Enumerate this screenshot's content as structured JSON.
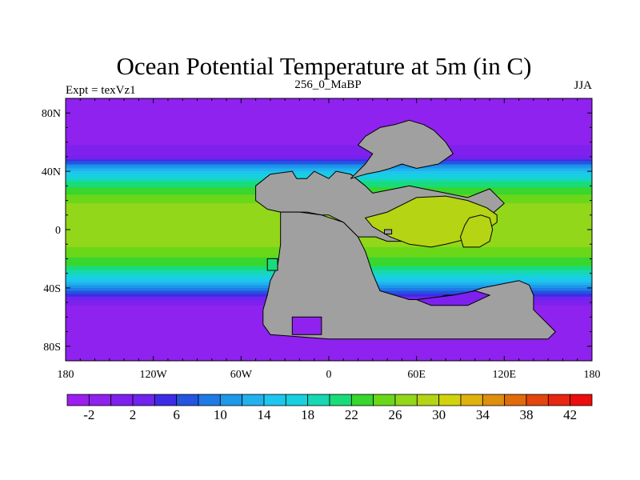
{
  "chart_data": {
    "type": "heatmap",
    "title": "Ocean Potential Temperature at 5m (in C)",
    "left_label": "Expt = texVz1",
    "center_label": "256_0_MaBP",
    "right_label": "JJA",
    "x_ticks": [
      "180",
      "120W",
      "60W",
      "0",
      "60E",
      "120E",
      "180"
    ],
    "y_ticks": [
      "80N",
      "40N",
      "0",
      "40S",
      "80S"
    ],
    "xlim": [
      -180,
      180
    ],
    "ylim": [
      -90,
      90
    ],
    "colorbar": {
      "labels": [
        "-2",
        "2",
        "6",
        "10",
        "14",
        "18",
        "22",
        "26",
        "30",
        "34",
        "38",
        "42"
      ],
      "levels": [
        -4,
        -2,
        0,
        2,
        4,
        6,
        8,
        10,
        12,
        14,
        16,
        18,
        20,
        22,
        24,
        26,
        28,
        30,
        32,
        34,
        36,
        38,
        40,
        42,
        44
      ],
      "colors": [
        "#9c1ff0",
        "#8f22ee",
        "#7f21ee",
        "#7024ee",
        "#3d2ce6",
        "#2255e0",
        "#1f7ae6",
        "#1d98ea",
        "#20b2ee",
        "#1fc6ee",
        "#17d0e0",
        "#16d8b4",
        "#18dc7c",
        "#38d62e",
        "#6ad818",
        "#92d71a",
        "#b4d414",
        "#d2d20f",
        "#dfb20c",
        "#df8f0c",
        "#e06a0c",
        "#e3450f",
        "#e8250f",
        "#ee0d0d"
      ]
    },
    "land_color": "#a0a0a0",
    "zonal_sst_profile": [
      {
        "lat": 90,
        "temp": -1.5
      },
      {
        "lat": 62,
        "temp": -1.0
      },
      {
        "lat": 50,
        "temp": 2
      },
      {
        "lat": 42,
        "temp": 12
      },
      {
        "lat": 32,
        "temp": 21
      },
      {
        "lat": 15,
        "temp": 27
      },
      {
        "lat": 0,
        "temp": 27.5
      },
      {
        "lat": -12,
        "temp": 26
      },
      {
        "lat": -25,
        "temp": 22
      },
      {
        "lat": -35,
        "temp": 15
      },
      {
        "lat": -45,
        "temp": 5
      },
      {
        "lat": -52,
        "temp": 0
      },
      {
        "lat": -90,
        "temp": -1.5
      }
    ],
    "land_masses": [
      {
        "name": "pangaea-north",
        "points": [
          [
            -50,
            30
          ],
          [
            -40,
            38
          ],
          [
            -25,
            40
          ],
          [
            -22,
            35
          ],
          [
            -15,
            35
          ],
          [
            -10,
            40
          ],
          [
            0,
            35
          ],
          [
            5,
            40
          ],
          [
            15,
            38
          ],
          [
            25,
            30
          ],
          [
            30,
            25
          ],
          [
            45,
            28
          ],
          [
            55,
            30
          ],
          [
            65,
            28
          ],
          [
            80,
            25
          ],
          [
            95,
            22
          ],
          [
            110,
            28
          ],
          [
            120,
            18
          ],
          [
            105,
            5
          ],
          [
            95,
            0
          ],
          [
            85,
            -5
          ],
          [
            75,
            -5
          ],
          [
            65,
            -8
          ],
          [
            55,
            -8
          ],
          [
            40,
            -8
          ],
          [
            32,
            -5
          ],
          [
            20,
            -5
          ],
          [
            10,
            5
          ],
          [
            0,
            10
          ],
          [
            -5,
            10
          ],
          [
            -15,
            12
          ],
          [
            -25,
            12
          ],
          [
            -33,
            12
          ],
          [
            -42,
            14
          ],
          [
            -50,
            20
          ]
        ]
      },
      {
        "name": "pangaea-south",
        "points": [
          [
            -33,
            12
          ],
          [
            -20,
            12
          ],
          [
            -5,
            10
          ],
          [
            10,
            5
          ],
          [
            20,
            -5
          ],
          [
            25,
            -15
          ],
          [
            30,
            -30
          ],
          [
            35,
            -42
          ],
          [
            45,
            -45
          ],
          [
            55,
            -48
          ],
          [
            70,
            -48
          ],
          [
            80,
            -45
          ],
          [
            90,
            -45
          ],
          [
            105,
            -40
          ],
          [
            115,
            -38
          ],
          [
            130,
            -35
          ],
          [
            137,
            -38
          ],
          [
            140,
            -45
          ],
          [
            140,
            -55
          ],
          [
            145,
            -60
          ],
          [
            150,
            -65
          ],
          [
            155,
            -70
          ],
          [
            150,
            -75
          ],
          [
            80,
            -75
          ],
          [
            0,
            -75
          ],
          [
            -40,
            -72
          ],
          [
            -45,
            -65
          ],
          [
            -45,
            -55
          ],
          [
            -42,
            -45
          ],
          [
            -40,
            -35
          ],
          [
            -35,
            -25
          ],
          [
            -33,
            -10
          ],
          [
            -33,
            0
          ]
        ]
      },
      {
        "name": "north-polar-continent",
        "points": [
          [
            15,
            35
          ],
          [
            25,
            45
          ],
          [
            30,
            52
          ],
          [
            20,
            58
          ],
          [
            25,
            64
          ],
          [
            35,
            70
          ],
          [
            45,
            72
          ],
          [
            55,
            75
          ],
          [
            65,
            72
          ],
          [
            72,
            68
          ],
          [
            80,
            60
          ],
          [
            85,
            52
          ],
          [
            75,
            45
          ],
          [
            60,
            42
          ],
          [
            50,
            45
          ],
          [
            42,
            42
          ],
          [
            35,
            40
          ],
          [
            25,
            38
          ]
        ]
      }
    ],
    "seas": [
      {
        "name": "tethys-sea",
        "temp": 28,
        "points": [
          [
            25,
            8
          ],
          [
            40,
            12
          ],
          [
            60,
            22
          ],
          [
            80,
            23
          ],
          [
            95,
            20
          ],
          [
            108,
            15
          ],
          [
            115,
            10
          ],
          [
            115,
            5
          ],
          [
            108,
            0
          ],
          [
            100,
            -5
          ],
          [
            92,
            -7
          ],
          [
            80,
            -10
          ],
          [
            70,
            -12
          ],
          [
            55,
            -10
          ],
          [
            42,
            -5
          ],
          [
            30,
            2
          ]
        ]
      },
      {
        "name": "inland-basin",
        "temp": 28,
        "points": [
          [
            96,
            8
          ],
          [
            104,
            10
          ],
          [
            110,
            8
          ],
          [
            112,
            0
          ],
          [
            110,
            -8
          ],
          [
            103,
            -12
          ],
          [
            92,
            -12
          ],
          [
            90,
            -5
          ],
          [
            93,
            3
          ]
        ]
      },
      {
        "name": "western-gulf",
        "temp": 20,
        "points": [
          [
            -42,
            -20
          ],
          [
            -35,
            -20
          ],
          [
            -35,
            -28
          ],
          [
            -42,
            -28
          ]
        ]
      },
      {
        "name": "southern-lake",
        "temp": -1,
        "points": [
          [
            -25,
            -60
          ],
          [
            -5,
            -60
          ],
          [
            -5,
            -72
          ],
          [
            -25,
            -72
          ]
        ]
      },
      {
        "name": "south-coast-sea",
        "temp": 1,
        "points": [
          [
            60,
            -48
          ],
          [
            85,
            -45
          ],
          [
            100,
            -42
          ],
          [
            110,
            -45
          ],
          [
            95,
            -52
          ],
          [
            70,
            -52
          ]
        ]
      }
    ],
    "dots": [
      {
        "name": "island-a",
        "temp": 26,
        "points": [
          [
            38,
            0
          ],
          [
            43,
            0
          ],
          [
            43,
            -3
          ],
          [
            38,
            -3
          ]
        ]
      }
    ]
  }
}
